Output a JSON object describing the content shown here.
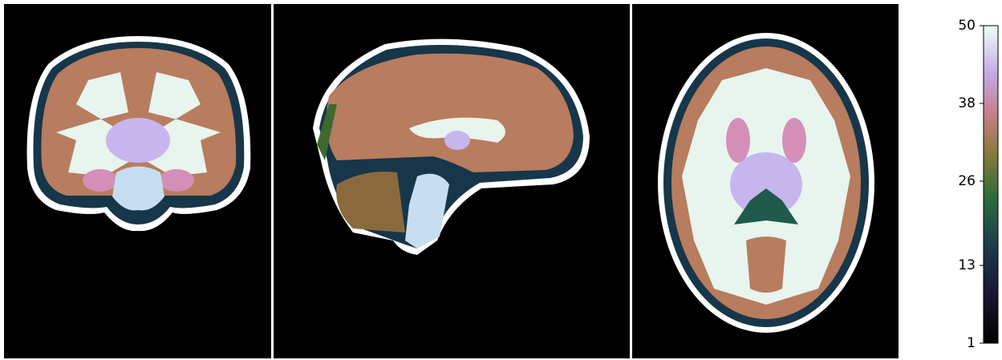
{
  "colorbar": {
    "ylim": [
      1,
      50
    ],
    "yticks": [
      1,
      13,
      26,
      38,
      50
    ]
  }
}
